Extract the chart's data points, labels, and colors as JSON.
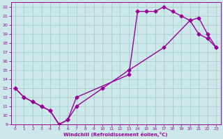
{
  "xlabel": "Windchill (Refroidissement éolien,°C)",
  "xlim": [
    -0.5,
    23.5
  ],
  "ylim": [
    9,
    22.5
  ],
  "xticks": [
    0,
    1,
    2,
    3,
    4,
    5,
    6,
    7,
    8,
    9,
    10,
    11,
    12,
    13,
    14,
    15,
    16,
    17,
    18,
    19,
    20,
    21,
    22,
    23
  ],
  "yticks": [
    9,
    10,
    11,
    12,
    13,
    14,
    15,
    16,
    17,
    18,
    19,
    20,
    21,
    22
  ],
  "bg_color": "#cce8e8",
  "grid_color": "#aacccc",
  "line_color": "#990099",
  "marker": "D",
  "markersize": 2.5,
  "linewidth": 1.0,
  "curve1_x": [
    0,
    1,
    2,
    3,
    4,
    5,
    6,
    7,
    13,
    14,
    15,
    16,
    17,
    18,
    19,
    20,
    21,
    22,
    23
  ],
  "curve1_y": [
    13,
    12,
    11.5,
    11,
    10.5,
    9,
    9.5,
    12,
    14.5,
    21.5,
    21.5,
    21.5,
    22,
    21.5,
    21,
    20.5,
    19,
    18.5,
    17.5
  ],
  "curve2_x": [
    0,
    1,
    2,
    3,
    4,
    5,
    6,
    7,
    10,
    13,
    17,
    20,
    21,
    22,
    23
  ],
  "curve2_y": [
    13,
    12,
    11.5,
    11,
    10.5,
    9,
    9.5,
    11,
    13,
    15,
    17.5,
    20.5,
    20.8,
    19,
    17.5
  ]
}
